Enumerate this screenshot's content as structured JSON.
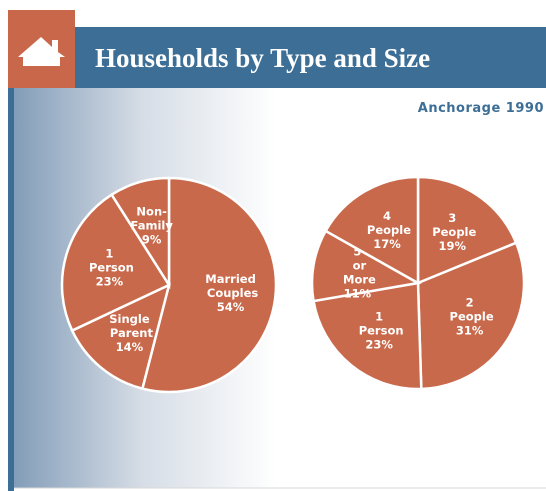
{
  "title": "Households by Type and Size",
  "subtitle": "Anchorage 1990",
  "chart_data": [
    {
      "type": "pie",
      "color": "#c9694b",
      "categories": [
        "Married Couples",
        "Single Parent",
        "1 Person",
        "Non-Family"
      ],
      "values": [
        54,
        14,
        23,
        9
      ],
      "value_labels": [
        "54%",
        "14%",
        "23%",
        "9%"
      ]
    },
    {
      "type": "pie",
      "color": "#c9694b",
      "categories": [
        "3 People",
        "2 People",
        "1 Person",
        "5 or More",
        "4 People"
      ],
      "values": [
        19,
        31,
        23,
        11,
        17
      ],
      "value_labels": [
        "19%",
        "31%",
        "23%",
        "11%",
        "17%"
      ]
    }
  ]
}
